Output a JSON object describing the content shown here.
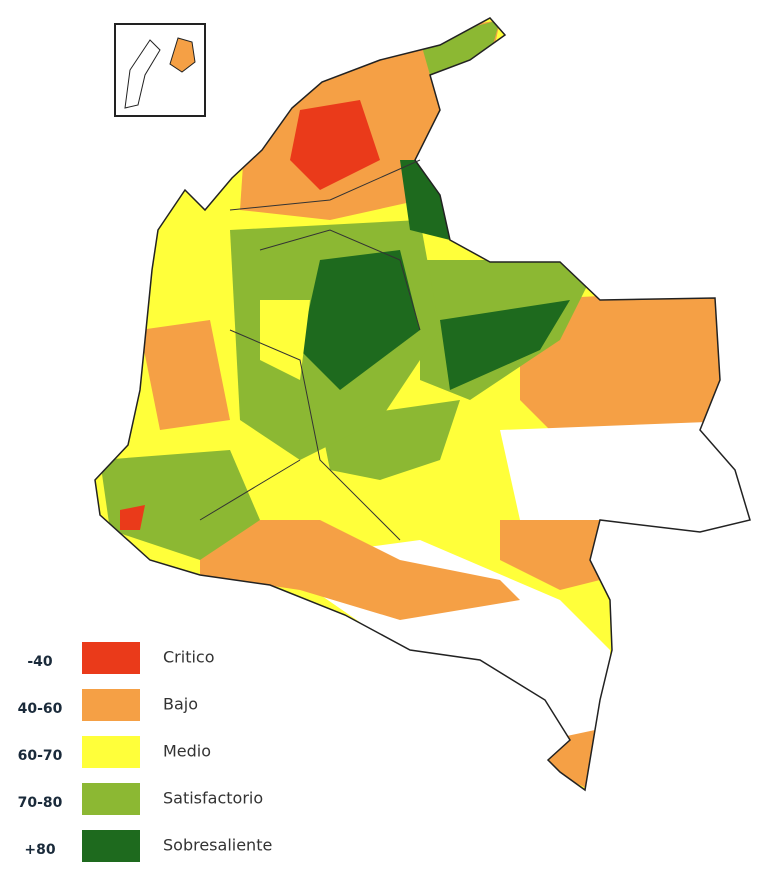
{
  "legend": {
    "items": [
      {
        "range": "-40",
        "label": "Critico",
        "color": "#ea3a1a"
      },
      {
        "range": "40-60",
        "label": "Bajo",
        "color": "#f5a045"
      },
      {
        "range": "60-70",
        "label": "Medio",
        "color": "#ffff3a"
      },
      {
        "range": "70-80",
        "label": "Satisfactorio",
        "color": "#8cb833"
      },
      {
        "range": "+80",
        "label": "Sobresaliente",
        "color": "#1e6a1e"
      }
    ]
  }
}
